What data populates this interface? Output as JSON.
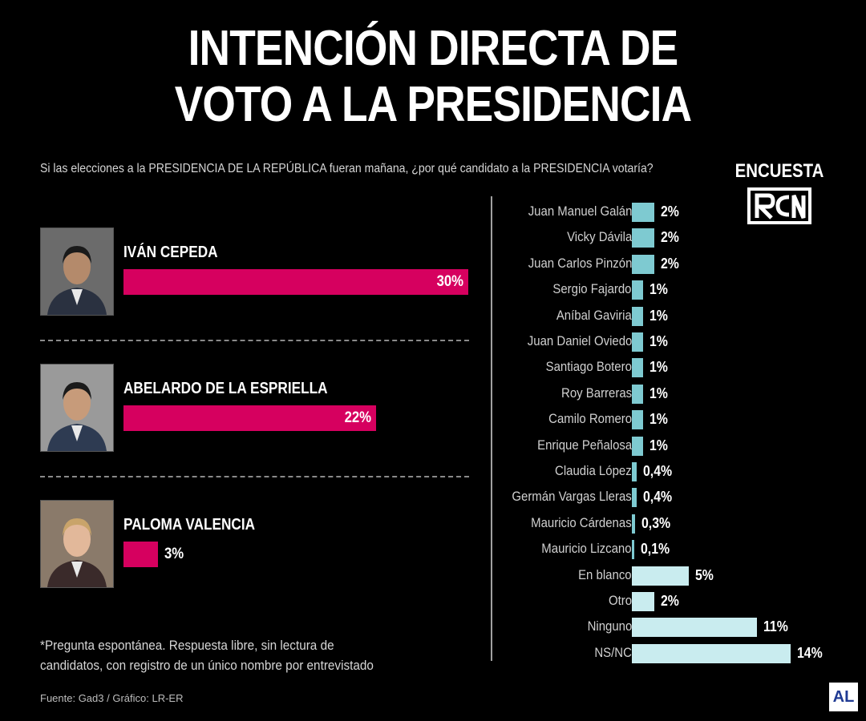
{
  "title_line1": "INTENCIÓN DIRECTA DE",
  "title_line2": "VOTO A LA PRESIDENCIA",
  "question": "Si las elecciones a la PRESIDENCIA DE LA REPÚBLICA fueran mañana, ¿por qué candidato a la PRESIDENCIA votaría?",
  "brand": {
    "label": "ENCUESTA",
    "logo_text": "RCN"
  },
  "footnote_line1": "*Pregunta espontánea. Respuesta libre, sin lectura de",
  "footnote_line2": "candidatos, con registro de un único nombre por entrevistado",
  "source": "Fuente: Gad3 / Gráfico: LR-ER",
  "publisher_logo": "AL",
  "colors": {
    "leaders": "#d6005f",
    "candidates": "#7ecad1",
    "other_options": "#c9ecef",
    "background": "#000000"
  },
  "chart_data": [
    {
      "type": "bar",
      "orientation": "horizontal",
      "unit": "%",
      "categories": [
        "IVÁN CEPEDA",
        "ABELARDO DE LA ESPRIELLA",
        "PALOMA VALENCIA"
      ],
      "values": [
        30,
        22,
        3
      ],
      "labels": [
        "30%",
        "22%",
        "3%"
      ]
    },
    {
      "type": "bar",
      "orientation": "horizontal",
      "unit": "%",
      "categories": [
        "Juan Manuel Galán",
        "Vicky Dávila",
        "Juan Carlos Pinzón",
        "Sergio Fajardo",
        "Aníbal Gaviria",
        "Juan Daniel Oviedo",
        "Santiago Botero",
        "Roy Barreras",
        "Camilo Romero",
        "Enrique Peñalosa",
        "Claudia López",
        "Germán Vargas Lleras",
        "Mauricio Cárdenas",
        "Mauricio Lizcano",
        "En blanco",
        "Otro",
        "Ninguno",
        "NS/NC"
      ],
      "values": [
        2,
        2,
        2,
        1,
        1,
        1,
        1,
        1,
        1,
        1,
        0.4,
        0.4,
        0.3,
        0.1,
        5,
        2,
        11,
        14
      ],
      "labels": [
        "2%",
        "2%",
        "2%",
        "1%",
        "1%",
        "1%",
        "1%",
        "1%",
        "1%",
        "1%",
        "0,4%",
        "0,4%",
        "0,3%",
        "0,1%",
        "5%",
        "2%",
        "11%",
        "14%"
      ],
      "group": [
        "candidate",
        "candidate",
        "candidate",
        "candidate",
        "candidate",
        "candidate",
        "candidate",
        "candidate",
        "candidate",
        "candidate",
        "candidate",
        "candidate",
        "candidate",
        "candidate",
        "other",
        "other",
        "other",
        "other"
      ]
    }
  ]
}
